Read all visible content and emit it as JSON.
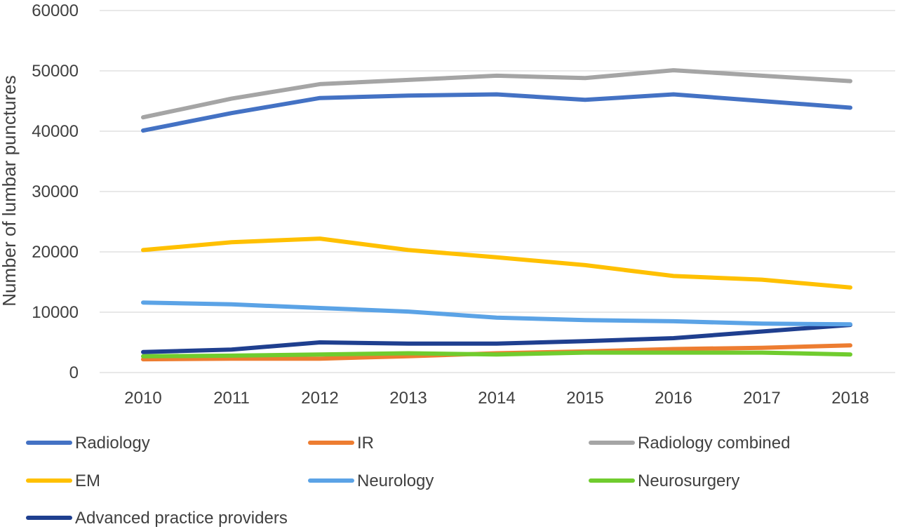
{
  "chart_data": {
    "type": "line",
    "title": "",
    "xlabel": "",
    "ylabel": "Number of lumbar punctures",
    "categories": [
      "2010",
      "2011",
      "2012",
      "2013",
      "2014",
      "2015",
      "2016",
      "2017",
      "2018"
    ],
    "yticks": [
      "0",
      "10000",
      "20000",
      "30000",
      "40000",
      "50000",
      "60000"
    ],
    "ylim": [
      0,
      60000
    ],
    "grid": true,
    "legend_position": "bottom",
    "series": [
      {
        "name": "Radiology",
        "color": "#4472C4",
        "values": [
          40100,
          43000,
          45500,
          45900,
          46100,
          45200,
          46100,
          45000,
          43900
        ]
      },
      {
        "name": "IR",
        "color": "#ED7D31",
        "values": [
          2200,
          2300,
          2300,
          2700,
          3200,
          3500,
          3900,
          4100,
          4500
        ]
      },
      {
        "name": "Radiology combined",
        "color": "#A5A5A5",
        "values": [
          42300,
          45400,
          47800,
          48500,
          49200,
          48800,
          50100,
          49200,
          48300
        ]
      },
      {
        "name": "EM",
        "color": "#FFC000",
        "values": [
          20300,
          21600,
          22200,
          20300,
          19100,
          17800,
          16000,
          15400,
          14100
        ]
      },
      {
        "name": "Neurology",
        "color": "#5BA3E6",
        "values": [
          11600,
          11300,
          10700,
          10100,
          9100,
          8700,
          8500,
          8100,
          8000
        ]
      },
      {
        "name": "Neurosurgery",
        "color": "#70CC2E",
        "values": [
          2700,
          2800,
          3000,
          3200,
          3000,
          3300,
          3300,
          3300,
          3000
        ]
      },
      {
        "name": "Advanced practice providers",
        "color": "#1F3F8F",
        "values": [
          3400,
          3800,
          5000,
          4800,
          4800,
          5200,
          5700,
          6800,
          7900
        ]
      }
    ]
  }
}
